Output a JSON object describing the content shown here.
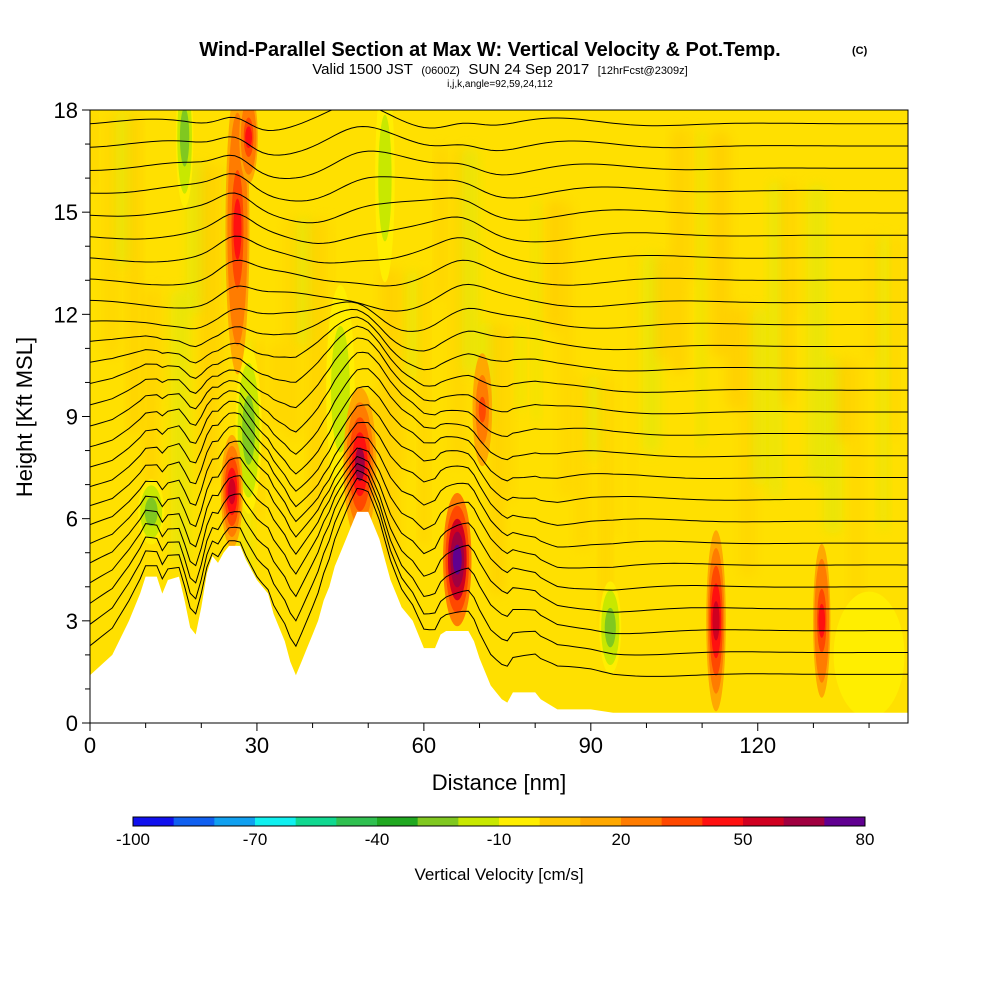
{
  "chart_data": {
    "type": "heatmap",
    "title": "Wind-Parallel Section at Max W: Vertical Velocity & Pot.Temp.",
    "title_mark": "(C)",
    "subtitle_main": "Valid 1500 JST",
    "subtitle_utc": "(0600Z)",
    "subtitle_date": "SUN 24 Sep 2017",
    "subtitle_fcst": "[12hrFcst@2309z]",
    "subtitle_index": "i,j,k,angle=92,59,24,112",
    "xlabel": "Distance [nm]",
    "ylabel": "Height [Kft MSL]",
    "xlim": [
      0,
      147
    ],
    "ylim": [
      0,
      18
    ],
    "xticks": [
      "0",
      "30",
      "60",
      "90",
      "120"
    ],
    "xtick_values": [
      0,
      30,
      60,
      90,
      120
    ],
    "yticks": [
      "0",
      "3",
      "6",
      "9",
      "12",
      "15",
      "18"
    ],
    "ytick_values": [
      0,
      3,
      6,
      9,
      12,
      15,
      18
    ],
    "colorbar": {
      "label": "Vertical Velocity [cm/s]",
      "min": -100,
      "max": 80,
      "tick_labels": [
        "-100",
        "-70",
        "-40",
        "-10",
        "20",
        "50",
        "80"
      ],
      "tick_values": [
        -100,
        -70,
        -40,
        -10,
        20,
        50,
        80
      ],
      "colors": [
        "#1010ee",
        "#1060f0",
        "#10a0f0",
        "#10f0f0",
        "#10d890",
        "#30c050",
        "#20a820",
        "#80c820",
        "#c8e800",
        "#ffee00",
        "#ffc800",
        "#ffa800",
        "#ff7c00",
        "#ff4800",
        "#ff1010",
        "#d00020",
        "#a00040",
        "#600090"
      ]
    },
    "terrain": [
      [
        0,
        1.4
      ],
      [
        4,
        2.0
      ],
      [
        7,
        3.0
      ],
      [
        9,
        3.8
      ],
      [
        10,
        4.3
      ],
      [
        12,
        4.3
      ],
      [
        13,
        3.8
      ],
      [
        14,
        4.2
      ],
      [
        16,
        4.3
      ],
      [
        17,
        3.6
      ],
      [
        18,
        2.8
      ],
      [
        19,
        2.6
      ],
      [
        20,
        3.4
      ],
      [
        21,
        4.4
      ],
      [
        22,
        4.9
      ],
      [
        23,
        4.7
      ],
      [
        24,
        5.0
      ],
      [
        25,
        5.2
      ],
      [
        27,
        5.2
      ],
      [
        28,
        4.8
      ],
      [
        30,
        4.2
      ],
      [
        32,
        3.8
      ],
      [
        33,
        3.2
      ],
      [
        34,
        2.8
      ],
      [
        35,
        2.4
      ],
      [
        36,
        1.8
      ],
      [
        37,
        1.4
      ],
      [
        38,
        1.8
      ],
      [
        39,
        2.2
      ],
      [
        40,
        2.6
      ],
      [
        41,
        3.0
      ],
      [
        42,
        3.6
      ],
      [
        43,
        4.0
      ],
      [
        44,
        4.6
      ],
      [
        45,
        5.0
      ],
      [
        46,
        5.4
      ],
      [
        47,
        5.8
      ],
      [
        48,
        6.2
      ],
      [
        50,
        6.2
      ],
      [
        51,
        5.8
      ],
      [
        52,
        5.4
      ],
      [
        53,
        4.8
      ],
      [
        54,
        4.2
      ],
      [
        55,
        3.8
      ],
      [
        56,
        3.4
      ],
      [
        57,
        3.2
      ],
      [
        58,
        3.0
      ],
      [
        59,
        2.6
      ],
      [
        60,
        2.2
      ],
      [
        62,
        2.2
      ],
      [
        63,
        2.6
      ],
      [
        64,
        2.7
      ],
      [
        68,
        2.7
      ],
      [
        69,
        2.4
      ],
      [
        70,
        1.9
      ],
      [
        71,
        1.5
      ],
      [
        72,
        1.1
      ],
      [
        73,
        0.9
      ],
      [
        74,
        0.7
      ],
      [
        75,
        0.6
      ],
      [
        76,
        0.9
      ],
      [
        80,
        0.9
      ],
      [
        81,
        0.7
      ],
      [
        84,
        0.4
      ],
      [
        90,
        0.4
      ],
      [
        94,
        0.3
      ],
      [
        147,
        0.3
      ]
    ],
    "updrafts": [
      {
        "x": 66,
        "y": 4.8,
        "w": 2.2,
        "h": 1.9,
        "value": 80
      },
      {
        "x": 48.5,
        "y": 7.6,
        "w": 2.6,
        "h": 2.2,
        "value": 60
      },
      {
        "x": 25.5,
        "y": 6.8,
        "w": 1.6,
        "h": 1.6,
        "value": 55
      },
      {
        "x": 26.5,
        "y": 14.5,
        "w": 1.8,
        "h": 4.2,
        "value": 45
      },
      {
        "x": 28.5,
        "y": 17.2,
        "w": 1.3,
        "h": 1.3,
        "value": 45
      },
      {
        "x": 112.5,
        "y": 3.0,
        "w": 1.4,
        "h": 2.6,
        "value": 50
      },
      {
        "x": 131.5,
        "y": 3.0,
        "w": 1.2,
        "h": 2.2,
        "value": 45
      },
      {
        "x": 70.5,
        "y": 9.2,
        "w": 1.4,
        "h": 1.6,
        "value": 35
      }
    ],
    "downdrafts": [
      {
        "x": 28.5,
        "y": 8.6,
        "w": 2.0,
        "h": 2.4,
        "value": -30
      },
      {
        "x": 11,
        "y": 6.2,
        "w": 2.0,
        "h": 0.9,
        "value": -25
      },
      {
        "x": 17,
        "y": 17.2,
        "w": 1.2,
        "h": 2.0,
        "value": -25
      },
      {
        "x": 93.5,
        "y": 2.8,
        "w": 1.6,
        "h": 1.3,
        "value": -25
      },
      {
        "x": 45,
        "y": 9.8,
        "w": 2.2,
        "h": 3.0,
        "value": -15
      },
      {
        "x": 53,
        "y": 16,
        "w": 1.4,
        "h": 3.0,
        "value": -15
      },
      {
        "x": 140,
        "y": 2.0,
        "w": 6.0,
        "h": 1.8,
        "value": -10
      }
    ],
    "theta_levels": 26
  }
}
